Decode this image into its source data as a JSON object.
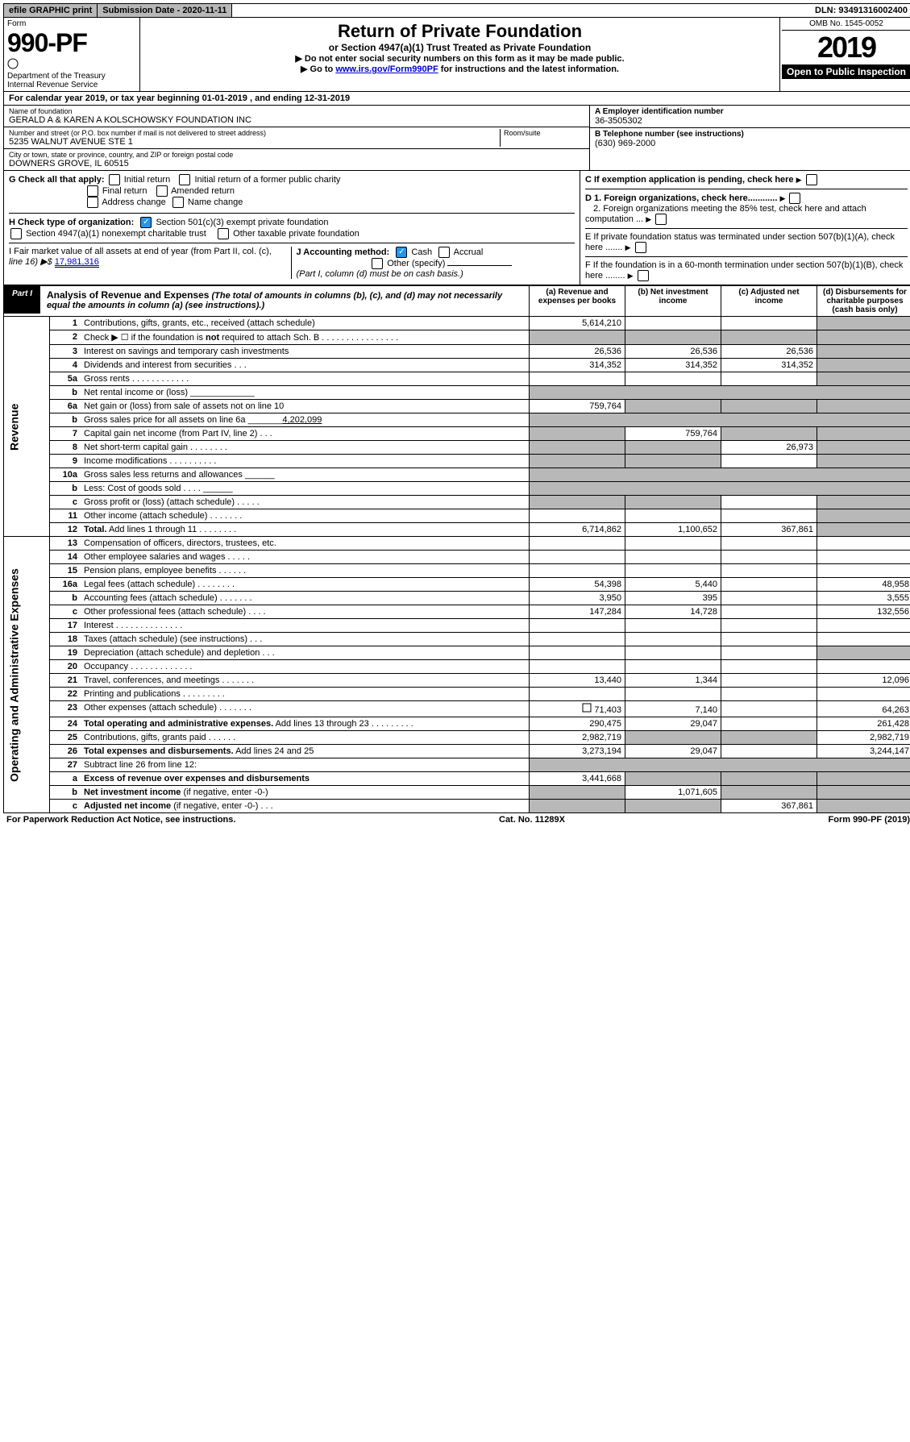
{
  "top": {
    "efile": "efile GRAPHIC print",
    "subdate": "Submission Date - 2020-11-11",
    "dln": "DLN: 93491316002400"
  },
  "header": {
    "form_word": "Form",
    "form_num": "990-PF",
    "dept": "Department of the Treasury",
    "irs": "Internal Revenue Service",
    "title": "Return of Private Foundation",
    "subtitle": "or Section 4947(a)(1) Trust Treated as Private Foundation",
    "note1": "▶ Do not enter social security numbers on this form as it may be made public.",
    "note2_pre": "▶ Go to ",
    "note2_link": "www.irs.gov/Form990PF",
    "note2_post": " for instructions and the latest information.",
    "omb": "OMB No. 1545-0052",
    "year": "2019",
    "open": "Open to Public Inspection"
  },
  "calyear": "For calendar year 2019, or tax year beginning 01-01-2019               , and ending 12-31-2019",
  "entity": {
    "name_label": "Name of foundation",
    "name": "GERALD A & KAREN A KOLSCHOWSKY FOUNDATION INC",
    "street_label": "Number and street (or P.O. box number if mail is not delivered to street address)",
    "room_label": "Room/suite",
    "street": "5235 WALNUT AVENUE STE 1",
    "city_label": "City or town, state or province, country, and ZIP or foreign postal code",
    "city": "DOWNERS GROVE, IL  60515",
    "ein_label": "A Employer identification number",
    "ein": "36-3505302",
    "phone_label": "B Telephone number (see instructions)",
    "phone": "(630) 969-2000",
    "c_label": "C If exemption application is pending, check here",
    "d1": "D 1. Foreign organizations, check here............",
    "d2": "2. Foreign organizations meeting the 85% test, check here and attach computation ...",
    "e_label": "E  If private foundation status was terminated under section 507(b)(1)(A), check here .......",
    "f_label": "F  If the foundation is in a 60-month termination under section 507(b)(1)(B), check here ........"
  },
  "g": {
    "label": "G Check all that apply:",
    "opts": [
      "Initial return",
      "Initial return of a former public charity",
      "Final return",
      "Amended return",
      "Address change",
      "Name change"
    ]
  },
  "h": {
    "label": "H Check type of organization:",
    "o1": "Section 501(c)(3) exempt private foundation",
    "o2": "Section 4947(a)(1) nonexempt charitable trust",
    "o3": "Other taxable private foundation"
  },
  "i": {
    "label": "I Fair market value of all assets at end of year (from Part II, col. (c),",
    "line16": "line 16) ▶$ ",
    "val": "17,981,316"
  },
  "j": {
    "label": "J Accounting method:",
    "cash": "Cash",
    "accrual": "Accrual",
    "other": "Other (specify)",
    "note": "(Part I, column (d) must be on cash basis.)"
  },
  "part1": {
    "label": "Part I",
    "title": "Analysis of Revenue and Expenses",
    "title_note": " (The total of amounts in columns (b), (c), and (d) may not necessarily equal the amounts in column (a) (see instructions).)",
    "cols": {
      "a": "(a)    Revenue and expenses per books",
      "b": "(b)   Net investment income",
      "c": "(c)   Adjusted net income",
      "d": "(d)   Disbursements for charitable purposes (cash basis only)"
    }
  },
  "side_rev": "Revenue",
  "side_exp": "Operating and Administrative Expenses",
  "rows": [
    {
      "n": "1",
      "d": "Contributions, gifts, grants, etc., received (attach schedule)",
      "a": "5,614,210",
      "b": "",
      "c": "",
      "dShade": true
    },
    {
      "n": "2",
      "d": "Check ▶ ☐ if the foundation is <b>not</b> required to attach Sch. B     .  .  .  .  .  .  .  .  .  .  .  .  .  .  .  .",
      "a": "",
      "b": "",
      "c": "",
      "dShade": true,
      "noAmt": true
    },
    {
      "n": "3",
      "d": "Interest on savings and temporary cash investments",
      "a": "26,536",
      "b": "26,536",
      "c": "26,536",
      "dShade": true
    },
    {
      "n": "4",
      "d": "Dividends and interest from securities     .   .   .",
      "a": "314,352",
      "b": "314,352",
      "c": "314,352",
      "dShade": true
    },
    {
      "n": "5a",
      "d": "Gross rents     .   .   .   .   .   .   .   .   .   .   .   .",
      "a": "",
      "b": "",
      "c": "",
      "dShade": true
    },
    {
      "n": "b",
      "d": "Net rental income or (loss)  _____________",
      "noAmt": true,
      "shadeAll": true
    },
    {
      "n": "6a",
      "d": "Net gain or (loss) from sale of assets not on line 10",
      "a": "759,764",
      "shadeBCD": true,
      "shadeB": true,
      "shadeC": true,
      "dShade": true
    },
    {
      "n": "b",
      "d": "Gross sales price for all assets on line 6a _______<u>4,202,099</u>",
      "noAmt": true,
      "shadeAll": true
    },
    {
      "n": "7",
      "d": "Capital gain net income (from Part IV, line 2)    .   .   .",
      "shadeA": true,
      "b": "759,764",
      "shadeC": true,
      "dShade": true
    },
    {
      "n": "8",
      "d": "Net short-term capital gain   .   .   .   .   .   .   .   .",
      "shadeA": true,
      "shadeB": true,
      "c": "26,973",
      "dShade": true
    },
    {
      "n": "9",
      "d": "Income modifications  .   .   .   .   .   .   .   .   .   .",
      "shadeA": true,
      "shadeB": true,
      "c": "",
      "dShade": true
    },
    {
      "n": "10a",
      "d": "Gross sales less returns and allowances  ______",
      "noAmt": true,
      "shadeAll": true
    },
    {
      "n": "b",
      "d": "Less: Cost of goods sold      .   .   .   .  ______",
      "noAmt": true,
      "shadeAll": true
    },
    {
      "n": "c",
      "d": "Gross profit or (loss) (attach schedule)    .   .   .   .   .",
      "shadeA": true,
      "shadeB": true,
      "c": "",
      "dShade": true
    },
    {
      "n": "11",
      "d": "Other income (attach schedule)    .   .   .   .   .   .   .",
      "a": "",
      "b": "",
      "c": "",
      "dShade": true
    },
    {
      "n": "12",
      "d": "<b>Total.</b> Add lines 1 through 11    .   .   .   .   .   .   .   .",
      "a": "6,714,862",
      "b": "1,100,652",
      "c": "367,861",
      "dShade": true
    }
  ],
  "exp_rows": [
    {
      "n": "13",
      "d": "Compensation of officers, directors, trustees, etc.",
      "a": "",
      "b": "",
      "c": "",
      "dd": ""
    },
    {
      "n": "14",
      "d": "Other employee salaries and wages     .   .   .   .   .",
      "a": "",
      "b": "",
      "c": "",
      "dd": ""
    },
    {
      "n": "15",
      "d": "Pension plans, employee benefits   .   .   .   .   .   .",
      "a": "",
      "b": "",
      "c": "",
      "dd": ""
    },
    {
      "n": "16a",
      "d": "Legal fees (attach schedule)  .   .   .   .   .   .   .   .",
      "a": "54,398",
      "b": "5,440",
      "c": "",
      "dd": "48,958"
    },
    {
      "n": "b",
      "d": "Accounting fees (attach schedule)  .   .   .   .   .   .   .",
      "a": "3,950",
      "b": "395",
      "c": "",
      "dd": "3,555"
    },
    {
      "n": "c",
      "d": "Other professional fees (attach schedule)     .   .   .   .",
      "a": "147,284",
      "b": "14,728",
      "c": "",
      "dd": "132,556"
    },
    {
      "n": "17",
      "d": "Interest   .   .   .   .   .   .   .   .   .   .   .   .   .   .",
      "a": "",
      "b": "",
      "c": "",
      "dd": ""
    },
    {
      "n": "18",
      "d": "Taxes (attach schedule) (see instructions)     .   .   .",
      "a": "",
      "b": "",
      "c": "",
      "dd": ""
    },
    {
      "n": "19",
      "d": "Depreciation (attach schedule) and depletion     .   .   .",
      "a": "",
      "b": "",
      "c": "",
      "dShade": true
    },
    {
      "n": "20",
      "d": "Occupancy  .   .   .   .   .   .   .   .   .   .   .   .   .",
      "a": "",
      "b": "",
      "c": "",
      "dd": ""
    },
    {
      "n": "21",
      "d": "Travel, conferences, and meetings  .   .   .   .   .   .   .",
      "a": "13,440",
      "b": "1,344",
      "c": "",
      "dd": "12,096"
    },
    {
      "n": "22",
      "d": "Printing and publications  .   .   .   .   .   .   .   .   .",
      "a": "",
      "b": "",
      "c": "",
      "dd": ""
    },
    {
      "n": "23",
      "d": "Other expenses (attach schedule)   .   .   .   .   .   .   .",
      "a": "71,403",
      "b": "7,140",
      "c": "",
      "dd": "64,263",
      "icon": true
    },
    {
      "n": "24",
      "d": "<b>Total operating and administrative expenses.</b> Add lines 13 through 23   .   .   .   .   .   .   .   .   .",
      "a": "290,475",
      "b": "29,047",
      "c": "",
      "dd": "261,428"
    },
    {
      "n": "25",
      "d": "Contributions, gifts, grants paid      .   .   .   .   .   .",
      "a": "2,982,719",
      "shadeB": true,
      "shadeC": true,
      "dd": "2,982,719"
    },
    {
      "n": "26",
      "d": "<b>Total expenses and disbursements.</b> Add lines 24 and 25",
      "a": "3,273,194",
      "b": "29,047",
      "c": "",
      "dd": "3,244,147"
    },
    {
      "n": "27",
      "d": "Subtract line 26 from line 12:",
      "noAmt": true,
      "shadeAll": true
    },
    {
      "n": "a",
      "d": "<b>Excess of revenue over expenses and disbursements</b>",
      "a": "3,441,668",
      "shadeB": true,
      "shadeC": true,
      "dShade": true
    },
    {
      "n": "b",
      "d": "<b>Net investment income</b> (if negative, enter -0-)",
      "shadeA": true,
      "b": "1,071,605",
      "shadeC": true,
      "dShade": true
    },
    {
      "n": "c",
      "d": "<b>Adjusted net income</b> (if negative, enter -0-)    .   .   .",
      "shadeA": true,
      "shadeB": true,
      "c": "367,861",
      "dShade": true
    }
  ],
  "footer": {
    "left": "For Paperwork Reduction Act Notice, see instructions.",
    "mid": "Cat. No. 11289X",
    "right": "Form 990-PF (2019)"
  }
}
